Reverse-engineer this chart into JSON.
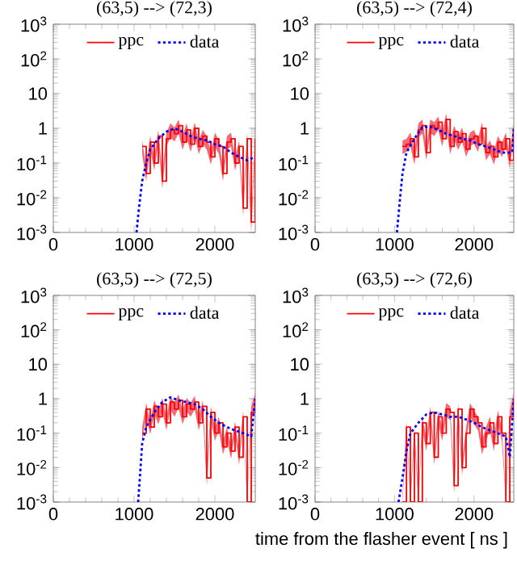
{
  "chart_data": [
    {
      "type": "line",
      "title": "(63,5) --> (72,3)",
      "xlim": [
        0,
        2500
      ],
      "xticks": [
        0,
        1000,
        2000
      ],
      "ylim": [
        0.001,
        1000
      ],
      "yticks": [
        {
          "value": 0.001,
          "label": "10$^{-3}$"
        },
        {
          "value": 0.01,
          "label": "10$^{-2}$"
        },
        {
          "value": 0.1,
          "label": "10$^{-1}$"
        },
        1,
        10,
        {
          "value": 100,
          "label": "10$^{2}$"
        },
        {
          "value": 1000,
          "label": "10$^{3}$"
        }
      ],
      "log": "y",
      "legend": "top",
      "series": [
        {
          "name": "ppc",
          "type": "step",
          "color": "#ff0000",
          "x": [
            1100,
            1150,
            1200,
            1250,
            1300,
            1350,
            1400,
            1450,
            1500,
            1550,
            1600,
            1650,
            1700,
            1750,
            1800,
            1850,
            1900,
            1950,
            2000,
            2050,
            2100,
            2150,
            2200,
            2250,
            2300,
            2350,
            2400,
            2450,
            2500
          ],
          "values": [
            0.3,
            0.05,
            0.4,
            0.1,
            0.6,
            0.03,
            0.5,
            0.9,
            0.7,
            1.2,
            0.4,
            0.9,
            0.35,
            1.0,
            0.3,
            0.6,
            0.4,
            0.15,
            0.5,
            0.3,
            0.05,
            0.4,
            0.5,
            0.1,
            0.3,
            0.005,
            0.5,
            0.002,
            0.5
          ],
          "upper": [
            0.45,
            0.08,
            0.6,
            0.15,
            0.9,
            0.05,
            0.75,
            1.4,
            1.05,
            1.8,
            0.6,
            1.4,
            0.5,
            1.5,
            0.45,
            0.9,
            0.6,
            0.22,
            0.75,
            0.45,
            0.08,
            0.6,
            0.75,
            0.15,
            0.45,
            0.008,
            0.75,
            0.003,
            0.75
          ],
          "lower": [
            0.18,
            0.03,
            0.24,
            0.06,
            0.36,
            0.018,
            0.3,
            0.54,
            0.42,
            0.72,
            0.24,
            0.54,
            0.21,
            0.6,
            0.18,
            0.36,
            0.24,
            0.09,
            0.3,
            0.18,
            0.03,
            0.24,
            0.3,
            0.06,
            0.18,
            0.003,
            0.3,
            0.001,
            0.3
          ]
        },
        {
          "name": "data",
          "color": "#0000ff",
          "line_style": "dotted",
          "x": [
            1030,
            1060,
            1100,
            1150,
            1200,
            1300,
            1400,
            1500,
            1600,
            1700,
            1800,
            1900,
            2000,
            2100,
            2200,
            2300,
            2400,
            2500
          ],
          "values": [
            0.001,
            0.005,
            0.03,
            0.1,
            0.25,
            0.5,
            0.8,
            1.0,
            0.8,
            0.6,
            0.5,
            0.45,
            0.35,
            0.3,
            0.2,
            0.15,
            0.12,
            0.15
          ]
        }
      ]
    },
    {
      "type": "line",
      "title": "(63,5) --> (72,4)",
      "xlim": [
        0,
        2500
      ],
      "xticks": [
        0,
        1000,
        2000
      ],
      "ylim": [
        0.001,
        1000
      ],
      "yticks": [
        {
          "value": 0.001,
          "label": "10$^{-3}$"
        },
        {
          "value": 0.01,
          "label": "10$^{-2}$"
        },
        {
          "value": 0.1,
          "label": "10$^{-1}$"
        },
        1,
        10,
        {
          "value": 100,
          "label": "10$^{2}$"
        },
        {
          "value": 1000,
          "label": "10$^{3}$"
        }
      ],
      "log": "y",
      "legend": "top",
      "series": [
        {
          "name": "ppc",
          "type": "step",
          "color": "#ff0000",
          "x": [
            1100,
            1150,
            1200,
            1250,
            1300,
            1350,
            1400,
            1450,
            1500,
            1550,
            1600,
            1650,
            1700,
            1750,
            1800,
            1850,
            1900,
            1950,
            2000,
            2050,
            2100,
            2150,
            2200,
            2250,
            2300,
            2350,
            2400,
            2450,
            2500
          ],
          "values": [
            0.3,
            0.35,
            0.5,
            0.15,
            0.9,
            1.2,
            0.2,
            1.2,
            1.0,
            1.5,
            0.5,
            1.8,
            0.3,
            0.8,
            0.4,
            0.7,
            0.25,
            0.5,
            0.6,
            0.35,
            1.0,
            0.2,
            0.3,
            0.15,
            0.4,
            0.25,
            0.5,
            0.12,
            1
          ],
          "upper": [
            0.45,
            0.5,
            0.75,
            0.22,
            1.4,
            1.8,
            0.3,
            1.8,
            1.5,
            2.2,
            0.75,
            2.7,
            0.45,
            1.2,
            0.6,
            1.05,
            0.38,
            0.75,
            0.9,
            0.5,
            1.5,
            0.3,
            0.45,
            0.22,
            0.6,
            0.38,
            0.75,
            0.18,
            1.5
          ],
          "lower": [
            0.18,
            0.21,
            0.3,
            0.09,
            0.54,
            0.72,
            0.12,
            0.72,
            0.6,
            0.9,
            0.3,
            1.1,
            0.18,
            0.48,
            0.24,
            0.42,
            0.15,
            0.3,
            0.36,
            0.21,
            0.6,
            0.12,
            0.18,
            0.09,
            0.24,
            0.15,
            0.3,
            0.07,
            0.6
          ]
        },
        {
          "name": "data",
          "color": "#0000ff",
          "line_style": "dotted",
          "x": [
            1030,
            1070,
            1100,
            1150,
            1250,
            1350,
            1450,
            1550,
            1650,
            1750,
            1850,
            1950,
            2050,
            2150,
            2250,
            2350,
            2450,
            2480,
            2500
          ],
          "values": [
            0.001,
            0.01,
            0.05,
            0.2,
            0.5,
            1.1,
            1.1,
            0.9,
            0.7,
            0.6,
            0.5,
            0.45,
            0.35,
            0.3,
            0.25,
            0.2,
            0.2,
            0.2,
            1
          ]
        }
      ]
    },
    {
      "type": "line",
      "title": "(63,5) --> (72,5)",
      "xlim": [
        0,
        2500
      ],
      "xticks": [
        0,
        1000,
        2000
      ],
      "ylim": [
        0.001,
        1000
      ],
      "yticks": [
        {
          "value": 0.001,
          "label": "10$^{-3}$"
        },
        {
          "value": 0.01,
          "label": "10$^{-2}$"
        },
        {
          "value": 0.1,
          "label": "10$^{-1}$"
        },
        1,
        10,
        {
          "value": 100,
          "label": "10$^{2}$"
        },
        {
          "value": 1000,
          "label": "10$^{3}$"
        }
      ],
      "log": "y",
      "legend": "top",
      "series": [
        {
          "name": "ppc",
          "type": "step",
          "color": "#ff0000",
          "x": [
            1100,
            1150,
            1200,
            1250,
            1300,
            1350,
            1400,
            1450,
            1500,
            1550,
            1600,
            1650,
            1700,
            1750,
            1800,
            1850,
            1900,
            1950,
            2000,
            2050,
            2100,
            2150,
            2200,
            2250,
            2300,
            2350,
            2400,
            2450,
            2500
          ],
          "values": [
            0.1,
            0.5,
            0.15,
            0.6,
            0.3,
            0.7,
            0.2,
            0.8,
            0.5,
            0.9,
            0.3,
            0.7,
            0.5,
            0.8,
            0.2,
            0.6,
            0.005,
            0.4,
            0.1,
            0.2,
            0.04,
            0.1,
            0.03,
            0.15,
            0.02,
            0.3,
            0.001,
            0.4,
            1
          ],
          "upper": [
            0.15,
            0.75,
            0.22,
            0.9,
            0.45,
            1.05,
            0.3,
            1.2,
            0.75,
            1.35,
            0.45,
            1.05,
            0.75,
            1.2,
            0.3,
            0.9,
            0.008,
            0.6,
            0.15,
            0.3,
            0.06,
            0.15,
            0.045,
            0.22,
            0.03,
            0.45,
            0.0015,
            0.6,
            1.5
          ],
          "lower": [
            0.06,
            0.3,
            0.09,
            0.36,
            0.18,
            0.42,
            0.12,
            0.48,
            0.3,
            0.54,
            0.18,
            0.42,
            0.3,
            0.48,
            0.12,
            0.36,
            0.003,
            0.24,
            0.06,
            0.12,
            0.024,
            0.06,
            0.018,
            0.09,
            0.012,
            0.18,
            0.001,
            0.24,
            0.6
          ]
        },
        {
          "name": "data",
          "color": "#0000ff",
          "line_style": "dotted",
          "x": [
            1050,
            1080,
            1100,
            1150,
            1250,
            1350,
            1450,
            1550,
            1650,
            1750,
            1850,
            1950,
            2050,
            2150,
            2250,
            2350,
            2450,
            2500
          ],
          "values": [
            0.001,
            0.01,
            0.05,
            0.15,
            0.4,
            0.8,
            1.1,
            0.9,
            0.8,
            0.7,
            0.5,
            0.3,
            0.2,
            0.15,
            0.12,
            0.1,
            0.08,
            1
          ]
        }
      ]
    },
    {
      "type": "line",
      "title": "(63,5) --> (72,6)",
      "xlabel": "time from the flasher event [ ns ]",
      "xlim": [
        0,
        2500
      ],
      "xticks": [
        0,
        1000,
        2000
      ],
      "ylim": [
        0.001,
        1000
      ],
      "yticks": [
        {
          "value": 0.001,
          "label": "10$^{-3}$"
        },
        {
          "value": 0.01,
          "label": "10$^{-2}$"
        },
        {
          "value": 0.1,
          "label": "10$^{-1}$"
        },
        1,
        10,
        {
          "value": 100,
          "label": "10$^{2}$"
        },
        {
          "value": 1000,
          "label": "10$^{3}$"
        }
      ],
      "log": "y",
      "legend": "top",
      "series": [
        {
          "name": "ppc",
          "type": "step",
          "color": "#ff0000",
          "x": [
            1100,
            1150,
            1200,
            1250,
            1300,
            1350,
            1400,
            1450,
            1500,
            1550,
            1600,
            1650,
            1700,
            1750,
            1800,
            1850,
            1900,
            1950,
            2000,
            2050,
            2100,
            2150,
            2200,
            2250,
            2300,
            2350,
            2400,
            2450,
            2500
          ],
          "values": [
            0.001,
            0.15,
            0.001,
            0.1,
            0.001,
            0.2,
            0.05,
            0.4,
            0.02,
            0.3,
            0.1,
            0.5,
            0.4,
            0.003,
            0.5,
            0.01,
            0.1,
            0.5,
            0.3,
            0.2,
            0.04,
            0.1,
            0.2,
            0.05,
            0.3,
            0.1,
            0.001,
            0.3,
            1
          ],
          "upper": [
            0.0015,
            0.22,
            0.0015,
            0.15,
            0.0015,
            0.3,
            0.075,
            0.6,
            0.03,
            0.45,
            0.15,
            0.75,
            0.6,
            0.0045,
            0.75,
            0.015,
            0.15,
            0.75,
            0.45,
            0.3,
            0.06,
            0.15,
            0.3,
            0.075,
            0.45,
            0.15,
            0.0015,
            0.45,
            1.5
          ],
          "lower": [
            0.001,
            0.09,
            0.001,
            0.06,
            0.001,
            0.12,
            0.03,
            0.24,
            0.012,
            0.18,
            0.06,
            0.3,
            0.24,
            0.0018,
            0.3,
            0.006,
            0.06,
            0.3,
            0.18,
            0.12,
            0.024,
            0.06,
            0.12,
            0.03,
            0.18,
            0.06,
            0.001,
            0.18,
            0.6
          ]
        },
        {
          "name": "data",
          "color": "#0000ff",
          "line_style": "dotted",
          "x": [
            1050,
            1100,
            1150,
            1200,
            1300,
            1400,
            1500,
            1600,
            1700,
            1800,
            1900,
            2000,
            2100,
            2200,
            2300,
            2400,
            2450,
            2500
          ],
          "values": [
            0.001,
            0.005,
            0.03,
            0.1,
            0.2,
            0.35,
            0.4,
            0.35,
            0.3,
            0.3,
            0.25,
            0.2,
            0.15,
            0.12,
            0.1,
            0.08,
            0.02,
            1
          ]
        }
      ]
    }
  ]
}
